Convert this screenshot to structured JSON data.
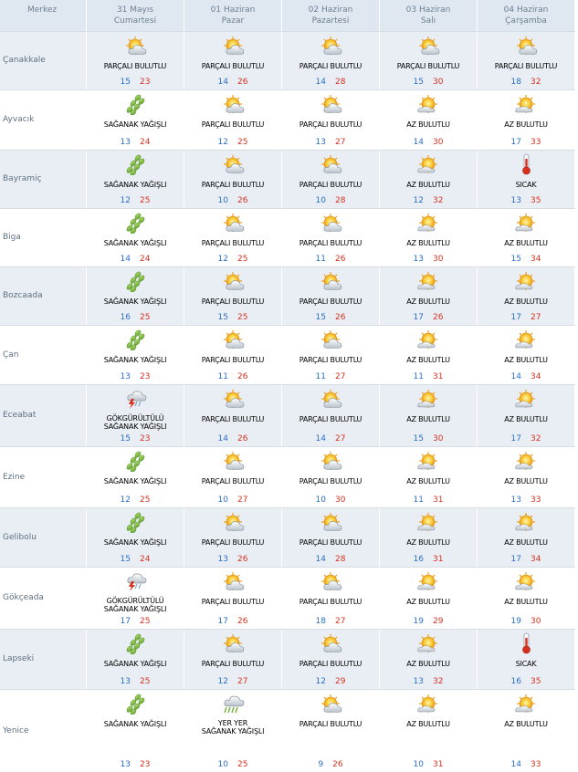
{
  "header": {
    "city_label": "Merkez",
    "days": [
      {
        "date": "31 Mayıs",
        "weekday": "Cumartesi"
      },
      {
        "date": "01 Haziran",
        "weekday": "Pazar"
      },
      {
        "date": "02 Haziran",
        "weekday": "Pazartesi"
      },
      {
        "date": "03 Haziran",
        "weekday": "Salı"
      },
      {
        "date": "04 Haziran",
        "weekday": "Çarşamba"
      }
    ]
  },
  "rows": [
    {
      "city": "Çanakkale",
      "days": [
        {
          "cond": "PARÇALI BULUTLU",
          "icon": "partly-cloudy-icon",
          "min": "15",
          "max": "23"
        },
        {
          "cond": "PARÇALI BULUTLU",
          "icon": "partly-cloudy-icon",
          "min": "14",
          "max": "26"
        },
        {
          "cond": "PARÇALI BULUTLU",
          "icon": "partly-cloudy-icon",
          "min": "14",
          "max": "28"
        },
        {
          "cond": "PARÇALI BULUTLU",
          "icon": "partly-cloudy-icon",
          "min": "15",
          "max": "30"
        },
        {
          "cond": "PARÇALI BULUTLU",
          "icon": "partly-cloudy-icon",
          "min": "18",
          "max": "32"
        }
      ]
    },
    {
      "city": "Ayvacık",
      "days": [
        {
          "cond": "SAĞANAK YAĞIŞLI",
          "icon": "shower-icon",
          "min": "13",
          "max": "24"
        },
        {
          "cond": "PARÇALI BULUTLU",
          "icon": "partly-cloudy-icon",
          "min": "12",
          "max": "25"
        },
        {
          "cond": "PARÇALI BULUTLU",
          "icon": "partly-cloudy-icon",
          "min": "13",
          "max": "27"
        },
        {
          "cond": "AZ BULUTLU",
          "icon": "mostly-sunny-icon",
          "min": "14",
          "max": "30"
        },
        {
          "cond": "AZ BULUTLU",
          "icon": "mostly-sunny-icon",
          "min": "17",
          "max": "33"
        }
      ]
    },
    {
      "city": "Bayramiç",
      "days": [
        {
          "cond": "SAĞANAK YAĞIŞLI",
          "icon": "shower-icon",
          "min": "12",
          "max": "25"
        },
        {
          "cond": "PARÇALI BULUTLU",
          "icon": "partly-cloudy-icon",
          "min": "10",
          "max": "26"
        },
        {
          "cond": "PARÇALI BULUTLU",
          "icon": "partly-cloudy-icon",
          "min": "10",
          "max": "28"
        },
        {
          "cond": "AZ BULUTLU",
          "icon": "mostly-sunny-icon",
          "min": "12",
          "max": "32"
        },
        {
          "cond": "SICAK",
          "icon": "thermometer-icon",
          "min": "13",
          "max": "35"
        }
      ]
    },
    {
      "city": "Biga",
      "days": [
        {
          "cond": "SAĞANAK YAĞIŞLI",
          "icon": "shower-icon",
          "min": "14",
          "max": "24"
        },
        {
          "cond": "PARÇALI BULUTLU",
          "icon": "partly-cloudy-icon",
          "min": "12",
          "max": "25"
        },
        {
          "cond": "PARÇALI BULUTLU",
          "icon": "partly-cloudy-icon",
          "min": "11",
          "max": "26"
        },
        {
          "cond": "AZ BULUTLU",
          "icon": "mostly-sunny-icon",
          "min": "13",
          "max": "30"
        },
        {
          "cond": "AZ BULUTLU",
          "icon": "mostly-sunny-icon",
          "min": "15",
          "max": "34"
        }
      ]
    },
    {
      "city": "Bozcaada",
      "days": [
        {
          "cond": "SAĞANAK YAĞIŞLI",
          "icon": "shower-icon",
          "min": "16",
          "max": "25"
        },
        {
          "cond": "PARÇALI BULUTLU",
          "icon": "partly-cloudy-icon",
          "min": "15",
          "max": "25"
        },
        {
          "cond": "PARÇALI BULUTLU",
          "icon": "partly-cloudy-icon",
          "min": "15",
          "max": "26"
        },
        {
          "cond": "AZ BULUTLU",
          "icon": "mostly-sunny-icon",
          "min": "17",
          "max": "26"
        },
        {
          "cond": "AZ BULUTLU",
          "icon": "mostly-sunny-icon",
          "min": "17",
          "max": "27"
        }
      ]
    },
    {
      "city": "Çan",
      "days": [
        {
          "cond": "SAĞANAK YAĞIŞLI",
          "icon": "shower-icon",
          "min": "13",
          "max": "23"
        },
        {
          "cond": "PARÇALI BULUTLU",
          "icon": "partly-cloudy-icon",
          "min": "11",
          "max": "26"
        },
        {
          "cond": "PARÇALI BULUTLU",
          "icon": "partly-cloudy-icon",
          "min": "11",
          "max": "27"
        },
        {
          "cond": "AZ BULUTLU",
          "icon": "mostly-sunny-icon",
          "min": "11",
          "max": "31"
        },
        {
          "cond": "AZ BULUTLU",
          "icon": "mostly-sunny-icon",
          "min": "14",
          "max": "34"
        }
      ]
    },
    {
      "city": "Eceabat",
      "days": [
        {
          "cond": "GÖKGÜRÜLTÜLÜ SAĞANAK YAĞIŞLI",
          "icon": "thunderstorm-icon",
          "min": "15",
          "max": "23"
        },
        {
          "cond": "PARÇALI BULUTLU",
          "icon": "partly-cloudy-icon",
          "min": "14",
          "max": "26"
        },
        {
          "cond": "PARÇALI BULUTLU",
          "icon": "partly-cloudy-icon",
          "min": "14",
          "max": "27"
        },
        {
          "cond": "AZ BULUTLU",
          "icon": "mostly-sunny-icon",
          "min": "15",
          "max": "30"
        },
        {
          "cond": "AZ BULUTLU",
          "icon": "mostly-sunny-icon",
          "min": "17",
          "max": "32"
        }
      ]
    },
    {
      "city": "Ezine",
      "days": [
        {
          "cond": "SAĞANAK YAĞIŞLI",
          "icon": "shower-icon",
          "min": "12",
          "max": "25"
        },
        {
          "cond": "PARÇALI BULUTLU",
          "icon": "partly-cloudy-icon",
          "min": "10",
          "max": "27"
        },
        {
          "cond": "PARÇALI BULUTLU",
          "icon": "partly-cloudy-icon",
          "min": "10",
          "max": "30"
        },
        {
          "cond": "AZ BULUTLU",
          "icon": "mostly-sunny-icon",
          "min": "11",
          "max": "31"
        },
        {
          "cond": "AZ BULUTLU",
          "icon": "mostly-sunny-icon",
          "min": "13",
          "max": "33"
        }
      ]
    },
    {
      "city": "Gelibolu",
      "days": [
        {
          "cond": "SAĞANAK YAĞIŞLI",
          "icon": "shower-icon",
          "min": "15",
          "max": "24"
        },
        {
          "cond": "PARÇALI BULUTLU",
          "icon": "partly-cloudy-icon",
          "min": "13",
          "max": "26"
        },
        {
          "cond": "PARÇALI BULUTLU",
          "icon": "partly-cloudy-icon",
          "min": "14",
          "max": "28"
        },
        {
          "cond": "AZ BULUTLU",
          "icon": "mostly-sunny-icon",
          "min": "16",
          "max": "31"
        },
        {
          "cond": "AZ BULUTLU",
          "icon": "mostly-sunny-icon",
          "min": "17",
          "max": "34"
        }
      ]
    },
    {
      "city": "Gökçeada",
      "days": [
        {
          "cond": "GÖKGÜRÜLTÜLÜ SAĞANAK YAĞIŞLI",
          "icon": "thunderstorm-icon",
          "min": "17",
          "max": "25"
        },
        {
          "cond": "PARÇALI BULUTLU",
          "icon": "partly-cloudy-icon",
          "min": "17",
          "max": "26"
        },
        {
          "cond": "PARÇALI BULUTLU",
          "icon": "partly-cloudy-icon",
          "min": "18",
          "max": "27"
        },
        {
          "cond": "AZ BULUTLU",
          "icon": "mostly-sunny-icon",
          "min": "19",
          "max": "29"
        },
        {
          "cond": "AZ BULUTLU",
          "icon": "mostly-sunny-icon",
          "min": "19",
          "max": "30"
        }
      ]
    },
    {
      "city": "Lapseki",
      "days": [
        {
          "cond": "SAĞANAK YAĞIŞLI",
          "icon": "shower-icon",
          "min": "13",
          "max": "25"
        },
        {
          "cond": "PARÇALI BULUTLU",
          "icon": "partly-cloudy-icon",
          "min": "12",
          "max": "27"
        },
        {
          "cond": "PARÇALI BULUTLU",
          "icon": "partly-cloudy-icon",
          "min": "12",
          "max": "29"
        },
        {
          "cond": "AZ BULUTLU",
          "icon": "mostly-sunny-icon",
          "min": "13",
          "max": "32"
        },
        {
          "cond": "SICAK",
          "icon": "thermometer-icon",
          "min": "16",
          "max": "35"
        }
      ]
    },
    {
      "city": "Yenice",
      "days": [
        {
          "cond": "SAĞANAK YAĞIŞLI",
          "icon": "shower-icon",
          "min": "13",
          "max": "23"
        },
        {
          "cond": "YER YER SAĞANAK YAĞIŞLI",
          "icon": "scattered-showers-icon",
          "min": "10",
          "max": "25"
        },
        {
          "cond": "PARÇALI BULUTLU",
          "icon": "partly-cloudy-icon",
          "min": "9",
          "max": "26"
        },
        {
          "cond": "AZ BULUTLU",
          "icon": "mostly-sunny-icon",
          "min": "10",
          "max": "31"
        },
        {
          "cond": "AZ BULUTLU",
          "icon": "mostly-sunny-icon",
          "min": "14",
          "max": "33"
        }
      ]
    }
  ],
  "colors": {
    "min_temp": "#2a6fc4",
    "max_temp": "#d7301f",
    "header_bg": "#dfe8f1",
    "row_shade": "#e9eef4"
  }
}
